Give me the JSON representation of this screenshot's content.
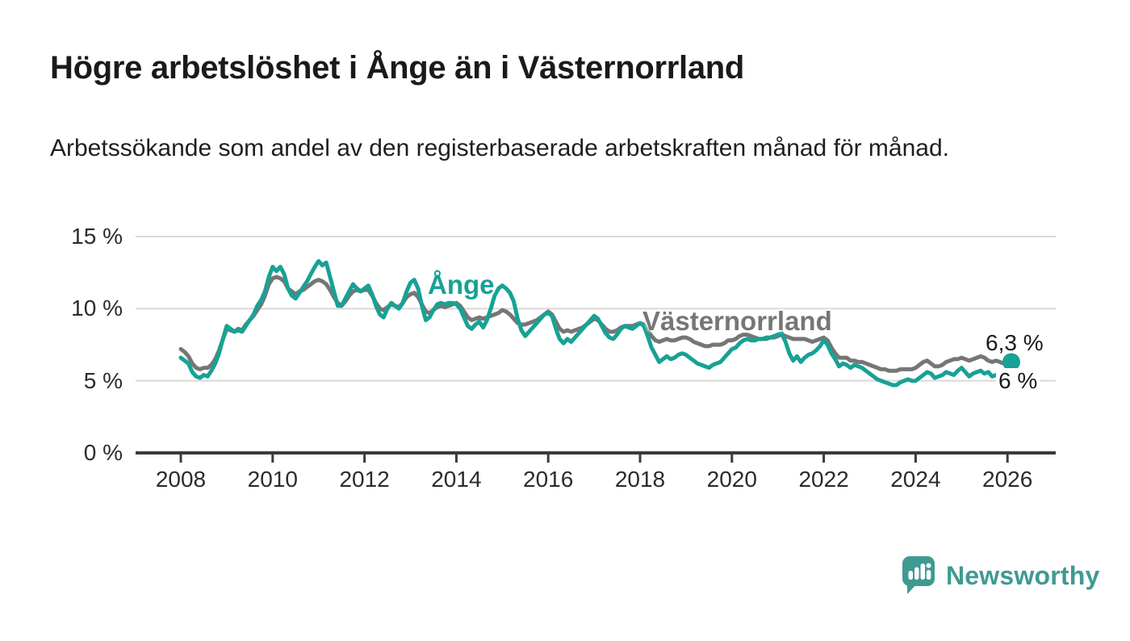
{
  "header": {
    "title": "Högre arbetslöshet i Ånge än i Västernorrland",
    "subtitle": "Arbetssökande som andel av den registerbaserade arbetskraften månad för månad."
  },
  "chart_data": {
    "type": "line",
    "title": "Högre arbetslöshet i Ånge än i Västernorrland",
    "subtitle": "Arbetssökande som andel av den registerbaserade arbetskraften månad för månad.",
    "xlabel": "",
    "ylabel": "",
    "x_unit": "year, monthly observations",
    "y_unit": "percent",
    "xlim": [
      2007.0,
      2027.1
    ],
    "ylim": [
      0,
      15
    ],
    "grid": "horizontal gridlines at 5, 10, 15; dark baseline at 0",
    "legend_position": "inline series labels on lines",
    "x_axis": {
      "ticks": [
        2008,
        2010,
        2012,
        2014,
        2016,
        2018,
        2020,
        2022,
        2024,
        2026
      ],
      "labels": [
        "2008",
        "2010",
        "2012",
        "2014",
        "2016",
        "2018",
        "2020",
        "2022",
        "2024",
        "2026"
      ]
    },
    "y_axis": {
      "ticks": [
        0,
        5,
        10,
        15
      ],
      "labels": [
        "0 %",
        "5 %",
        "10 %",
        "15 %"
      ]
    },
    "x_start": 2008.0,
    "x_step": 0.0833333,
    "series": [
      {
        "name": "Ånge",
        "color": "#17a295",
        "end_label": "6,3 %",
        "end_value": 6.3,
        "end_marker": true,
        "values": [
          6.6,
          6.4,
          6.2,
          5.6,
          5.3,
          5.2,
          5.4,
          5.3,
          5.7,
          6.2,
          6.9,
          7.9,
          8.8,
          8.6,
          8.4,
          8.5,
          8.4,
          8.8,
          9.2,
          9.6,
          10.2,
          10.6,
          11.2,
          12.2,
          12.9,
          12.6,
          12.9,
          12.4,
          11.4,
          10.9,
          10.7,
          11.1,
          11.5,
          11.9,
          12.4,
          12.9,
          13.3,
          13.0,
          13.2,
          12.2,
          11.2,
          10.2,
          10.2,
          10.7,
          11.2,
          11.7,
          11.4,
          11.2,
          11.4,
          11.6,
          11.0,
          10.2,
          9.6,
          9.4,
          10.0,
          10.4,
          10.2,
          10.0,
          10.4,
          11.2,
          11.8,
          12.0,
          11.4,
          10.2,
          9.2,
          9.4,
          9.9,
          10.3,
          10.4,
          10.3,
          10.4,
          10.4,
          10.3,
          10.0,
          9.4,
          8.8,
          8.6,
          8.9,
          9.1,
          8.7,
          9.2,
          10.0,
          10.9,
          11.4,
          11.6,
          11.4,
          11.1,
          10.5,
          9.3,
          8.5,
          8.1,
          8.4,
          8.7,
          9.0,
          9.3,
          9.6,
          9.7,
          9.5,
          8.6,
          7.9,
          7.6,
          7.9,
          7.7,
          8.0,
          8.3,
          8.6,
          8.9,
          9.2,
          9.5,
          9.3,
          8.8,
          8.3,
          8.0,
          7.9,
          8.2,
          8.6,
          8.8,
          8.7,
          8.6,
          8.8,
          9.0,
          8.8,
          8.1,
          7.3,
          6.8,
          6.3,
          6.5,
          6.7,
          6.5,
          6.6,
          6.8,
          6.9,
          6.8,
          6.6,
          6.4,
          6.2,
          6.1,
          6.0,
          5.9,
          6.1,
          6.2,
          6.3,
          6.6,
          6.9,
          7.2,
          7.3,
          7.6,
          7.8,
          7.9,
          7.8,
          7.8,
          7.9,
          7.9,
          8.0,
          8.0,
          8.1,
          8.2,
          8.3,
          7.7,
          6.9,
          6.4,
          6.7,
          6.3,
          6.6,
          6.8,
          6.9,
          7.1,
          7.4,
          7.8,
          7.5,
          6.9,
          6.5,
          6.0,
          6.2,
          6.1,
          5.9,
          6.1,
          6.0,
          5.9,
          5.7,
          5.5,
          5.3,
          5.1,
          5.0,
          4.9,
          4.8,
          4.7,
          4.7,
          4.9,
          5.0,
          5.1,
          5.0,
          5.0,
          5.2,
          5.4,
          5.6,
          5.5,
          5.2,
          5.3,
          5.4,
          5.6,
          5.5,
          5.4,
          5.7,
          5.9,
          5.6,
          5.3,
          5.5,
          5.6,
          5.7,
          5.5,
          5.6,
          5.3,
          5.4,
          5.5,
          5.4,
          5.5,
          6.3
        ]
      },
      {
        "name": "Västernorrland",
        "color": "#767676",
        "end_label": "6 %",
        "end_value": 6.0,
        "end_marker": false,
        "values": [
          7.2,
          7.0,
          6.7,
          6.2,
          5.9,
          5.8,
          5.9,
          5.9,
          6.1,
          6.5,
          7.1,
          7.9,
          8.6,
          8.5,
          8.4,
          8.6,
          8.5,
          8.9,
          9.2,
          9.5,
          9.9,
          10.3,
          10.9,
          11.7,
          12.1,
          12.2,
          12.1,
          11.9,
          11.4,
          11.2,
          11.0,
          11.2,
          11.3,
          11.5,
          11.7,
          11.9,
          12.0,
          11.9,
          11.7,
          11.3,
          10.8,
          10.4,
          10.2,
          10.5,
          10.9,
          11.2,
          11.3,
          11.2,
          11.3,
          11.3,
          10.9,
          10.4,
          10.0,
          9.9,
          10.1,
          10.3,
          10.2,
          10.1,
          10.4,
          10.8,
          11.0,
          11.1,
          10.8,
          10.3,
          9.8,
          9.7,
          9.9,
          10.1,
          10.2,
          10.1,
          10.2,
          10.3,
          10.4,
          10.2,
          9.8,
          9.4,
          9.2,
          9.3,
          9.4,
          9.3,
          9.4,
          9.5,
          9.6,
          9.7,
          9.9,
          9.8,
          9.6,
          9.3,
          9.0,
          8.9,
          8.9,
          9.0,
          9.1,
          9.2,
          9.4,
          9.6,
          9.8,
          9.6,
          9.1,
          8.6,
          8.4,
          8.5,
          8.4,
          8.5,
          8.6,
          8.7,
          8.9,
          9.1,
          9.3,
          9.2,
          8.9,
          8.6,
          8.4,
          8.4,
          8.5,
          8.7,
          8.8,
          8.8,
          8.8,
          8.9,
          9.0,
          8.9,
          8.5,
          8.1,
          7.8,
          7.7,
          7.8,
          7.9,
          7.8,
          7.8,
          7.9,
          8.0,
          8.0,
          7.9,
          7.7,
          7.6,
          7.5,
          7.4,
          7.4,
          7.5,
          7.5,
          7.5,
          7.6,
          7.8,
          7.8,
          7.9,
          8.1,
          8.2,
          8.2,
          8.1,
          8.0,
          7.9,
          7.9,
          7.9,
          8.0,
          8.0,
          8.1,
          8.2,
          8.1,
          8.0,
          7.9,
          7.9,
          7.9,
          7.9,
          7.8,
          7.7,
          7.8,
          7.9,
          8.0,
          7.8,
          7.3,
          6.9,
          6.6,
          6.6,
          6.6,
          6.4,
          6.4,
          6.3,
          6.3,
          6.2,
          6.1,
          6.0,
          5.9,
          5.8,
          5.8,
          5.7,
          5.7,
          5.7,
          5.8,
          5.8,
          5.8,
          5.8,
          5.9,
          6.1,
          6.3,
          6.4,
          6.2,
          6.0,
          6.0,
          6.1,
          6.3,
          6.4,
          6.5,
          6.5,
          6.6,
          6.5,
          6.4,
          6.5,
          6.6,
          6.7,
          6.6,
          6.4,
          6.3,
          6.4,
          6.3,
          6.2,
          6.1,
          6.0
        ]
      }
    ]
  },
  "footer": {
    "brand": "Newsworthy"
  },
  "colors": {
    "accent_teal": "#17a295",
    "series_gray": "#767676",
    "logo_teal": "#3f9a92",
    "gridline": "#d9d9d9",
    "axis": "#3b3b3b",
    "text": "#1a1a1a"
  }
}
